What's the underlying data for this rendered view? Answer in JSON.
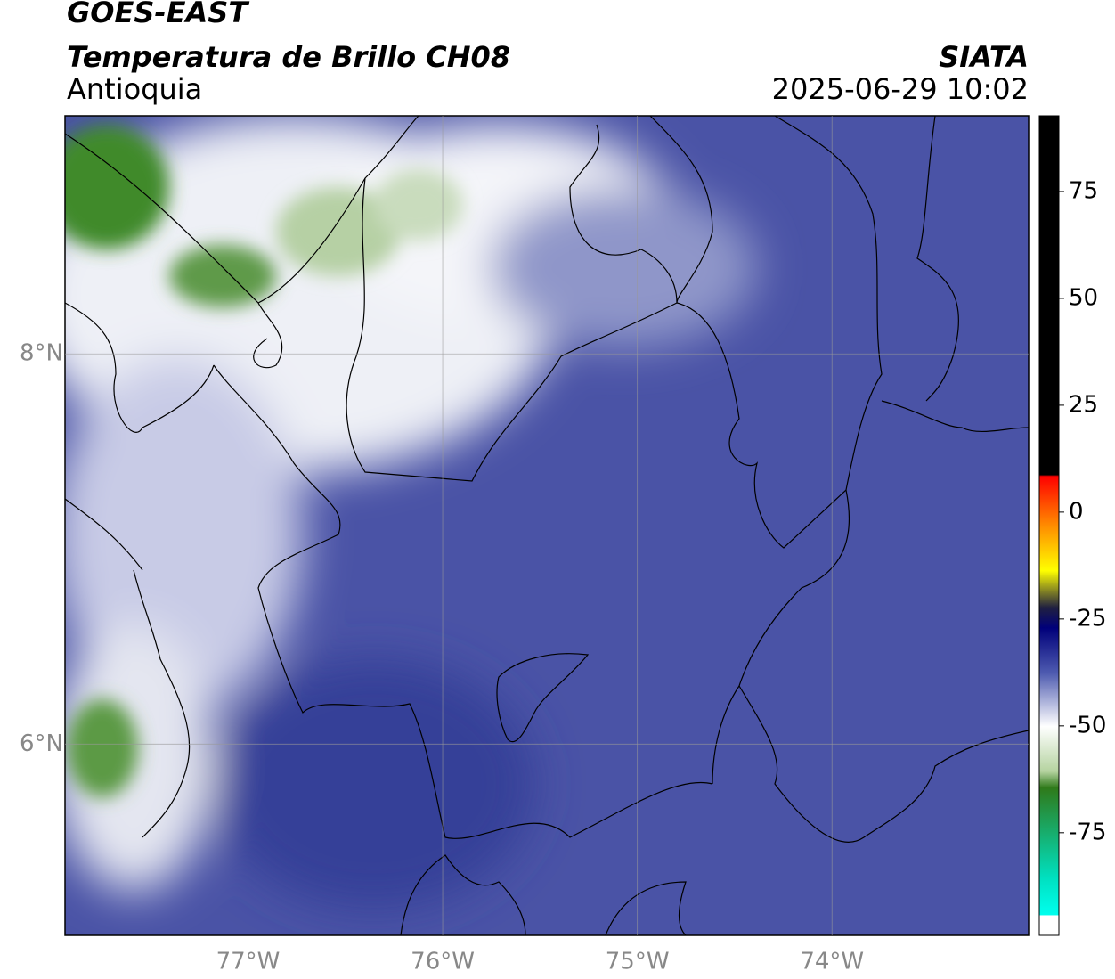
{
  "header": {
    "title": "GOES-EAST",
    "subtitle": "Temperatura de Brillo CH08",
    "region": "Antioquia",
    "source": "SIATA",
    "datetime": "2025-06-29 10:02"
  },
  "map": {
    "lonlim": [
      -77.94,
      -72.99
    ],
    "latlim": [
      5.02,
      9.22
    ],
    "lon_ticks": [
      {
        "value": -77,
        "label": "77°W"
      },
      {
        "value": -76,
        "label": "76°W"
      },
      {
        "value": -75,
        "label": "75°W"
      },
      {
        "value": -74,
        "label": "74°W"
      }
    ],
    "lat_ticks": [
      {
        "value": 8,
        "label": "8°N"
      },
      {
        "value": 6,
        "label": "6°N"
      }
    ],
    "grid": true
  },
  "colorbar": {
    "lim": [
      -99,
      92.7
    ],
    "ticks": [
      -75,
      -50,
      -25,
      0,
      25,
      50,
      75
    ]
  }
}
